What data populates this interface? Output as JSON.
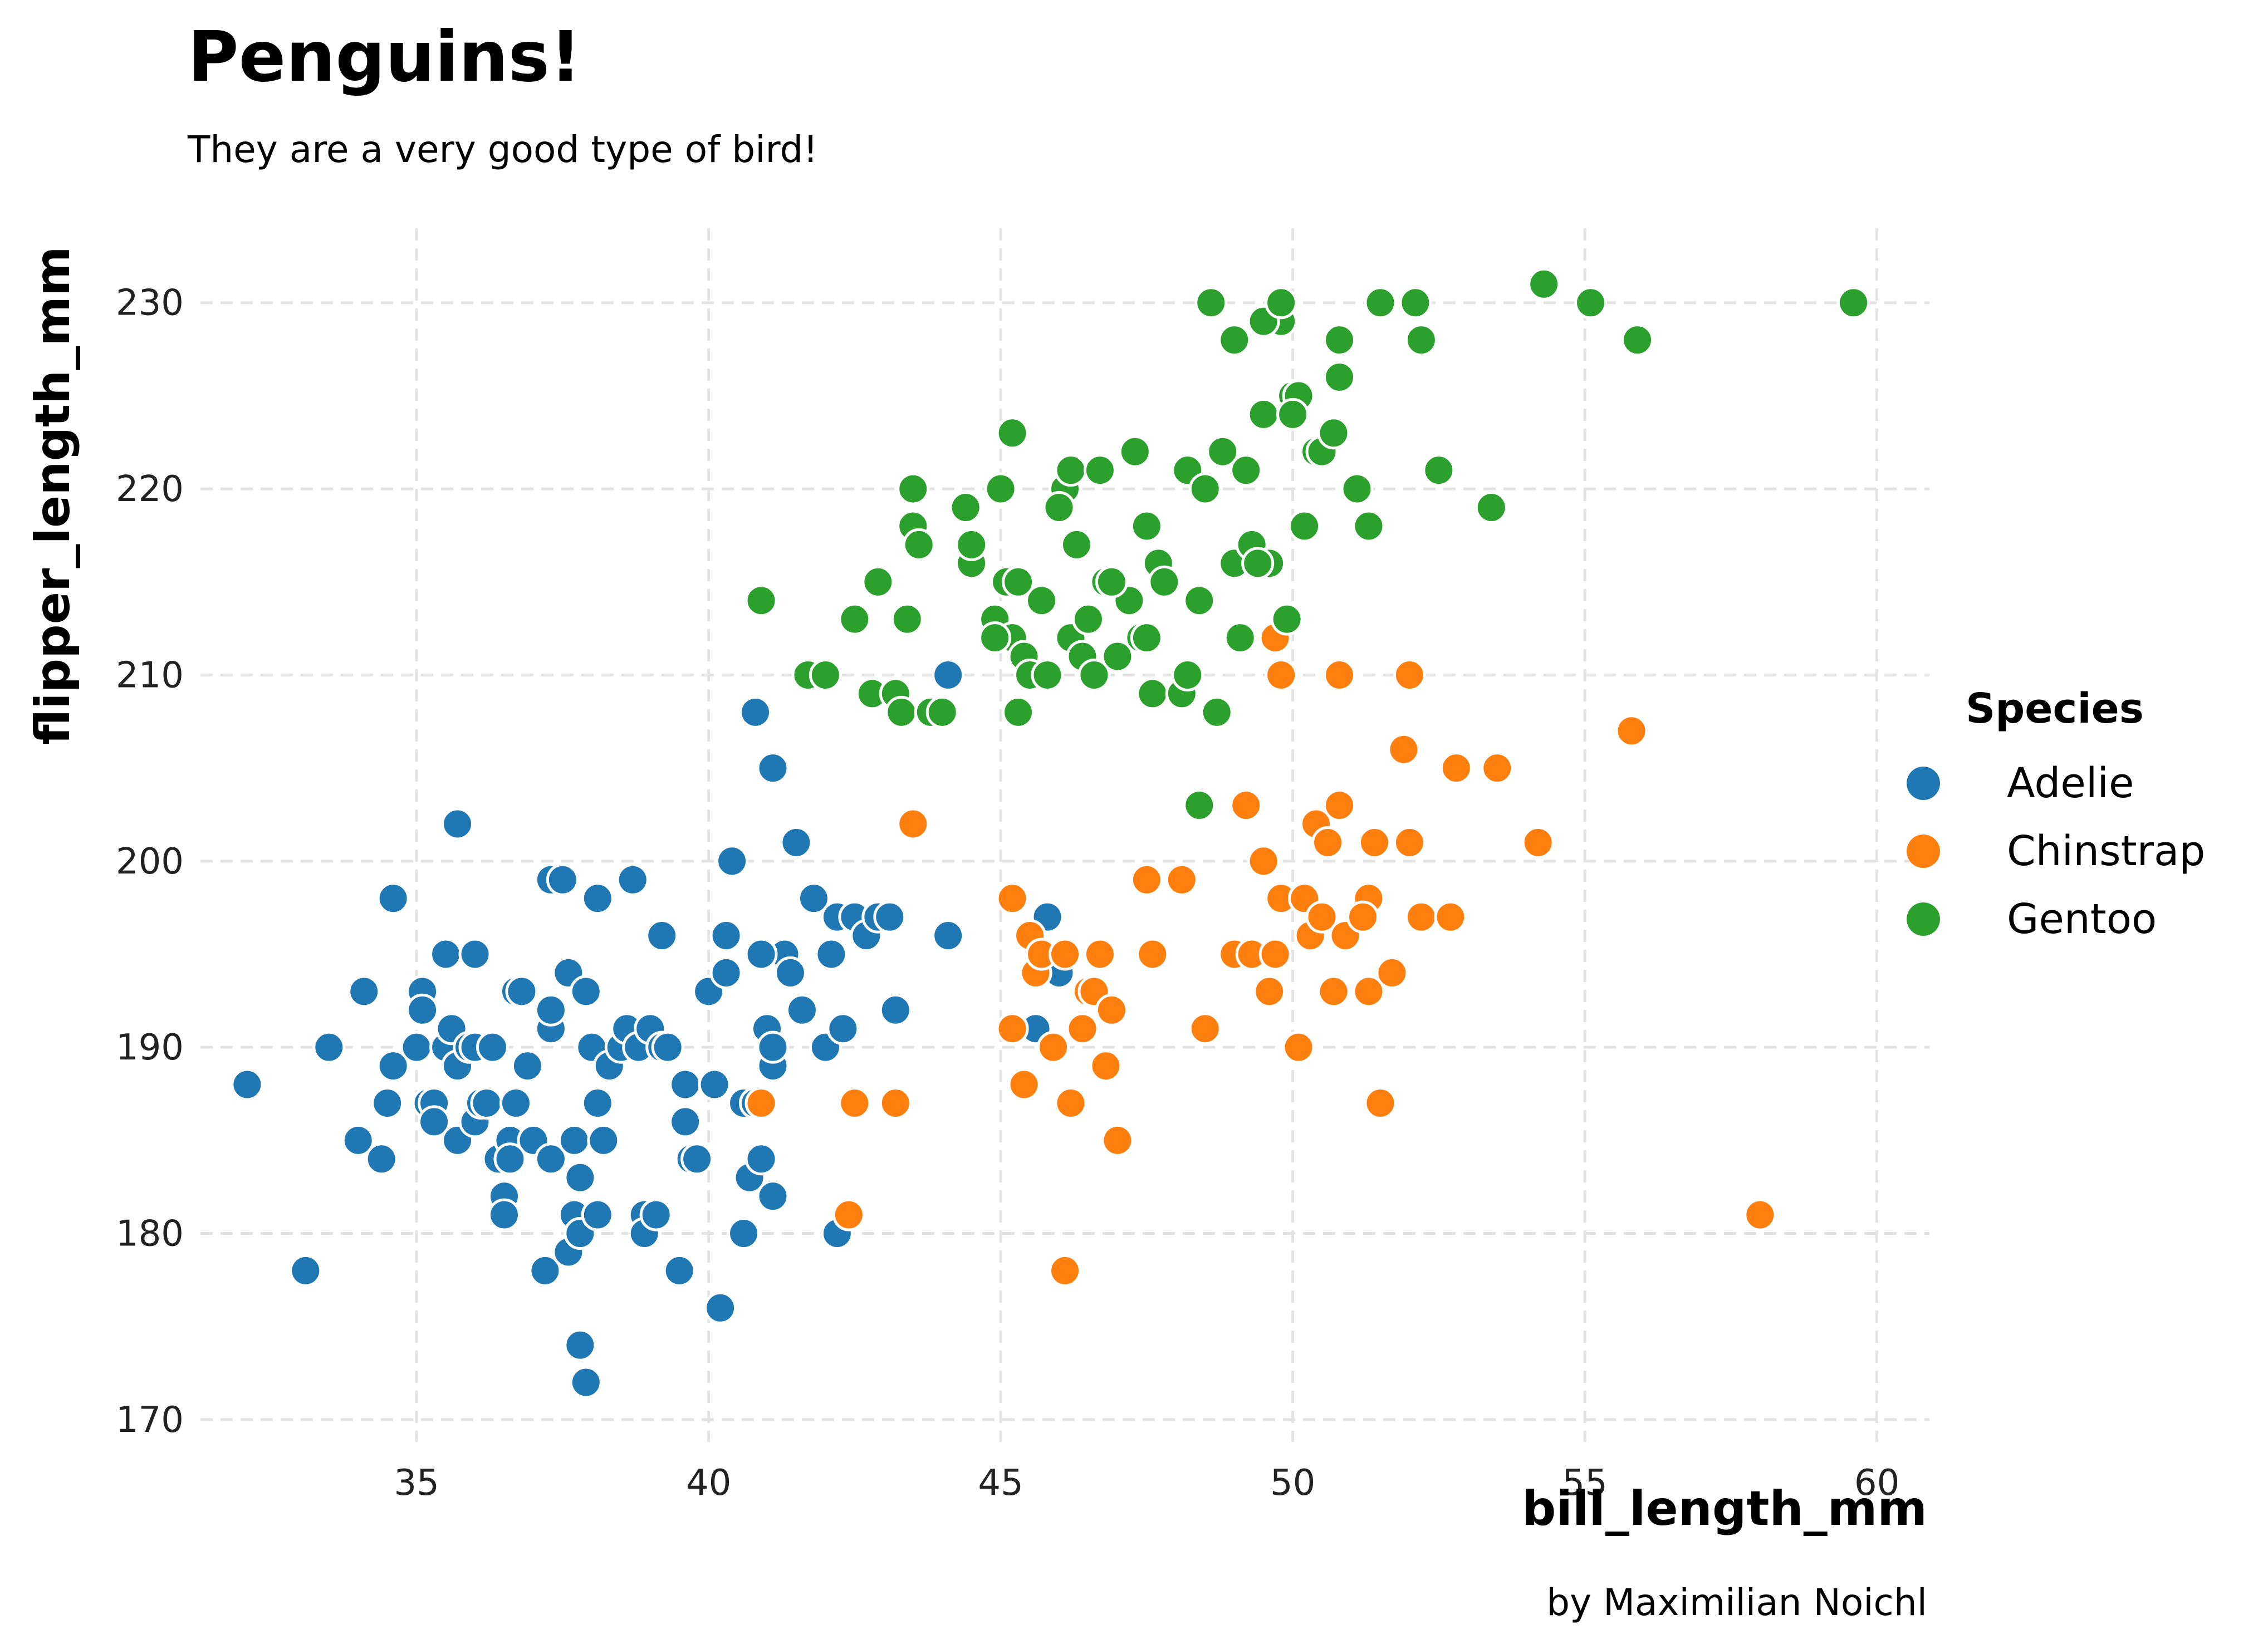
{
  "title": "Penguins!",
  "subtitle": "They are a very good type of bird!",
  "caption": "by Maximilian Noichl",
  "legend": {
    "title": "Species",
    "items": [
      {
        "label": "Adelie",
        "color": "#1f77b4"
      },
      {
        "label": "Chinstrap",
        "color": "#ff7f0e"
      },
      {
        "label": "Gentoo",
        "color": "#2ca02c"
      }
    ],
    "placement": "right"
  },
  "chart_data": {
    "type": "scatter",
    "xlabel": "bill_length_mm",
    "ylabel": "flipper_length_mm",
    "xlim": [
      31.3,
      60.9
    ],
    "ylim": [
      168.8,
      234.0
    ],
    "xticks": [
      35,
      40,
      45,
      50,
      55,
      60
    ],
    "yticks": [
      170,
      180,
      190,
      200,
      210,
      220,
      230
    ],
    "grid": true,
    "series": [
      {
        "name": "Adelie",
        "color": "#1f77b4",
        "points": [
          [
            32.1,
            188
          ],
          [
            33.1,
            178
          ],
          [
            33.5,
            190
          ],
          [
            34.0,
            185
          ],
          [
            34.1,
            193
          ],
          [
            34.4,
            184
          ],
          [
            34.5,
            187
          ],
          [
            34.6,
            189
          ],
          [
            34.6,
            198
          ],
          [
            35.0,
            190
          ],
          [
            35.1,
            193
          ],
          [
            35.1,
            192
          ],
          [
            35.2,
            187
          ],
          [
            35.3,
            187
          ],
          [
            35.3,
            186
          ],
          [
            35.5,
            190
          ],
          [
            35.5,
            195
          ],
          [
            35.6,
            191
          ],
          [
            35.7,
            185
          ],
          [
            35.7,
            189
          ],
          [
            35.7,
            202
          ],
          [
            35.9,
            190
          ],
          [
            36.0,
            186
          ],
          [
            36.0,
            195
          ],
          [
            36.0,
            190
          ],
          [
            36.1,
            187
          ],
          [
            36.2,
            187
          ],
          [
            36.3,
            190
          ],
          [
            36.4,
            184
          ],
          [
            36.5,
            182
          ],
          [
            36.5,
            181
          ],
          [
            36.6,
            185
          ],
          [
            36.7,
            187
          ],
          [
            36.7,
            193
          ],
          [
            36.8,
            193
          ],
          [
            36.9,
            189
          ],
          [
            37.0,
            185
          ],
          [
            37.2,
            178
          ],
          [
            37.3,
            191
          ],
          [
            37.3,
            184
          ],
          [
            37.3,
            192
          ],
          [
            37.3,
            199
          ],
          [
            37.5,
            199
          ],
          [
            37.6,
            179
          ],
          [
            37.6,
            194
          ],
          [
            37.7,
            181
          ],
          [
            37.7,
            185
          ],
          [
            37.8,
            180
          ],
          [
            37.8,
            183
          ],
          [
            37.8,
            174
          ],
          [
            37.9,
            172
          ],
          [
            37.9,
            193
          ],
          [
            38.0,
            190
          ],
          [
            38.1,
            181
          ],
          [
            38.1,
            187
          ],
          [
            38.1,
            198
          ],
          [
            38.2,
            185
          ],
          [
            38.3,
            189
          ],
          [
            38.5,
            190
          ],
          [
            38.6,
            191
          ],
          [
            38.7,
            199
          ],
          [
            38.8,
            190
          ],
          [
            38.9,
            181
          ],
          [
            38.9,
            180
          ],
          [
            39.0,
            191
          ],
          [
            39.1,
            181
          ],
          [
            39.2,
            196
          ],
          [
            39.2,
            190
          ],
          [
            39.5,
            178
          ],
          [
            39.6,
            186
          ],
          [
            39.6,
            188
          ],
          [
            39.7,
            184
          ],
          [
            39.8,
            184
          ],
          [
            40.0,
            193
          ],
          [
            40.1,
            188
          ],
          [
            40.2,
            176
          ],
          [
            40.3,
            196
          ],
          [
            40.3,
            194
          ],
          [
            40.4,
            200
          ],
          [
            40.6,
            187
          ],
          [
            40.6,
            180
          ],
          [
            40.7,
            183
          ],
          [
            40.8,
            187
          ],
          [
            40.8,
            208
          ],
          [
            40.9,
            184
          ],
          [
            41.0,
            191
          ],
          [
            41.1,
            189
          ],
          [
            41.1,
            190
          ],
          [
            41.1,
            182
          ],
          [
            41.1,
            205
          ],
          [
            41.3,
            195
          ],
          [
            41.4,
            194
          ],
          [
            41.5,
            201
          ],
          [
            41.6,
            192
          ],
          [
            41.8,
            198
          ],
          [
            42.0,
            190
          ],
          [
            42.1,
            195
          ],
          [
            42.2,
            197
          ],
          [
            42.2,
            180
          ],
          [
            42.3,
            191
          ],
          [
            42.5,
            197
          ],
          [
            42.7,
            196
          ],
          [
            42.9,
            197
          ],
          [
            43.1,
            197
          ],
          [
            43.2,
            192
          ],
          [
            44.1,
            196
          ],
          [
            44.1,
            210
          ],
          [
            45.6,
            191
          ],
          [
            45.8,
            197
          ],
          [
            46.0,
            194
          ],
          [
            40.9,
            195
          ],
          [
            39.3,
            190
          ],
          [
            36.6,
            184
          ]
        ]
      },
      {
        "name": "Chinstrap",
        "color": "#ff7f0e",
        "points": [
          [
            40.9,
            187
          ],
          [
            42.4,
            181
          ],
          [
            42.5,
            187
          ],
          [
            43.2,
            187
          ],
          [
            43.5,
            202
          ],
          [
            45.2,
            198
          ],
          [
            45.2,
            191
          ],
          [
            45.4,
            188
          ],
          [
            45.5,
            196
          ],
          [
            45.6,
            194
          ],
          [
            45.7,
            195
          ],
          [
            45.9,
            190
          ],
          [
            46.1,
            178
          ],
          [
            46.2,
            187
          ],
          [
            46.4,
            191
          ],
          [
            46.5,
            193
          ],
          [
            46.6,
            193
          ],
          [
            46.7,
            195
          ],
          [
            46.8,
            189
          ],
          [
            46.9,
            192
          ],
          [
            47.0,
            185
          ],
          [
            47.5,
            199
          ],
          [
            47.6,
            195
          ],
          [
            48.1,
            199
          ],
          [
            48.5,
            191
          ],
          [
            49.0,
            195
          ],
          [
            49.2,
            203
          ],
          [
            49.3,
            195
          ],
          [
            49.5,
            200
          ],
          [
            49.6,
            193
          ],
          [
            49.7,
            195
          ],
          [
            49.8,
            198
          ],
          [
            50.1,
            190
          ],
          [
            50.2,
            198
          ],
          [
            50.3,
            196
          ],
          [
            50.4,
            202
          ],
          [
            50.5,
            197
          ],
          [
            50.6,
            201
          ],
          [
            50.7,
            193
          ],
          [
            50.8,
            203
          ],
          [
            50.9,
            196
          ],
          [
            51.3,
            193
          ],
          [
            51.4,
            201
          ],
          [
            51.5,
            187
          ],
          [
            51.7,
            194
          ],
          [
            51.9,
            206
          ],
          [
            52.0,
            201
          ],
          [
            52.2,
            197
          ],
          [
            52.7,
            197
          ],
          [
            52.8,
            205
          ],
          [
            53.5,
            205
          ],
          [
            54.2,
            201
          ],
          [
            55.8,
            207
          ],
          [
            58.0,
            181
          ],
          [
            49.8,
            210
          ],
          [
            50.8,
            210
          ],
          [
            52.0,
            210
          ],
          [
            46.1,
            195
          ],
          [
            51.3,
            198
          ],
          [
            51.2,
            197
          ],
          [
            49.7,
            212
          ]
        ]
      },
      {
        "name": "Gentoo",
        "color": "#2ca02c",
        "points": [
          [
            40.9,
            214
          ],
          [
            41.7,
            210
          ],
          [
            42.0,
            210
          ],
          [
            42.5,
            213
          ],
          [
            42.8,
            209
          ],
          [
            42.9,
            215
          ],
          [
            43.2,
            209
          ],
          [
            43.3,
            208
          ],
          [
            43.4,
            213
          ],
          [
            43.5,
            220
          ],
          [
            43.5,
            218
          ],
          [
            43.6,
            217
          ],
          [
            43.8,
            208
          ],
          [
            44.0,
            208
          ],
          [
            44.4,
            219
          ],
          [
            44.5,
            216
          ],
          [
            44.5,
            217
          ],
          [
            44.9,
            213
          ],
          [
            45.0,
            220
          ],
          [
            45.1,
            215
          ],
          [
            45.2,
            212
          ],
          [
            45.2,
            223
          ],
          [
            45.3,
            208
          ],
          [
            45.4,
            211
          ],
          [
            45.5,
            210
          ],
          [
            45.7,
            214
          ],
          [
            45.8,
            210
          ],
          [
            46.1,
            220
          ],
          [
            46.2,
            212
          ],
          [
            46.2,
            221
          ],
          [
            46.3,
            217
          ],
          [
            46.4,
            211
          ],
          [
            46.5,
            213
          ],
          [
            46.8,
            215
          ],
          [
            47.2,
            214
          ],
          [
            47.3,
            222
          ],
          [
            47.4,
            212
          ],
          [
            47.5,
            218
          ],
          [
            47.6,
            209
          ],
          [
            47.7,
            216
          ],
          [
            47.8,
            215
          ],
          [
            48.1,
            209
          ],
          [
            48.2,
            221
          ],
          [
            48.4,
            203
          ],
          [
            48.5,
            220
          ],
          [
            48.6,
            230
          ],
          [
            48.7,
            208
          ],
          [
            48.8,
            222
          ],
          [
            49.0,
            216
          ],
          [
            49.1,
            212
          ],
          [
            49.2,
            221
          ],
          [
            49.3,
            217
          ],
          [
            49.5,
            224
          ],
          [
            49.6,
            216
          ],
          [
            49.8,
            229
          ],
          [
            49.9,
            213
          ],
          [
            50.0,
            225
          ],
          [
            50.1,
            225
          ],
          [
            50.2,
            218
          ],
          [
            50.4,
            222
          ],
          [
            50.5,
            222
          ],
          [
            50.7,
            223
          ],
          [
            50.8,
            228
          ],
          [
            50.8,
            226
          ],
          [
            51.1,
            220
          ],
          [
            51.3,
            218
          ],
          [
            51.5,
            230
          ],
          [
            52.1,
            230
          ],
          [
            52.2,
            228
          ],
          [
            52.5,
            221
          ],
          [
            53.4,
            219
          ],
          [
            54.3,
            231
          ],
          [
            55.1,
            230
          ],
          [
            55.9,
            228
          ],
          [
            59.6,
            230
          ],
          [
            48.2,
            210
          ],
          [
            49.0,
            228
          ],
          [
            49.5,
            229
          ],
          [
            46.6,
            210
          ],
          [
            46.7,
            221
          ],
          [
            47.5,
            212
          ],
          [
            46.0,
            219
          ],
          [
            45.3,
            215
          ],
          [
            49.8,
            230
          ],
          [
            50.0,
            224
          ],
          [
            49.4,
            216
          ],
          [
            44.9,
            212
          ],
          [
            47.0,
            211
          ],
          [
            46.9,
            215
          ],
          [
            48.4,
            214
          ]
        ]
      }
    ]
  }
}
